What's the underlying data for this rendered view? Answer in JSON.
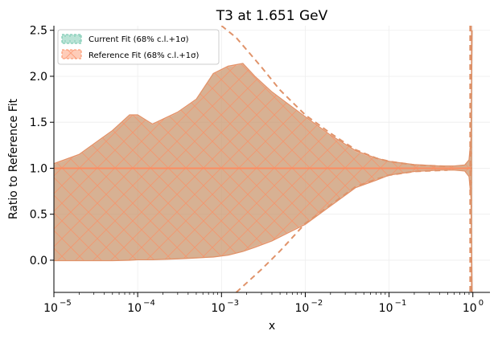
{
  "chart_data": {
    "type": "area",
    "title": "T3 at 1.651 GeV",
    "xlabel": "x",
    "ylabel": "Ratio to Reference Fit",
    "x_scale": "log",
    "xlim": [
      1e-05,
      1.6
    ],
    "ylim": [
      -0.35,
      2.55
    ],
    "x_ticks": [
      {
        "value": 1e-05,
        "label": "10",
        "exp": "−5"
      },
      {
        "value": 0.0001,
        "label": "10",
        "exp": "−4"
      },
      {
        "value": 0.001,
        "label": "10",
        "exp": "−3"
      },
      {
        "value": 0.01,
        "label": "10",
        "exp": "−2"
      },
      {
        "value": 0.1,
        "label": "10",
        "exp": "−1"
      },
      {
        "value": 1,
        "label": "10",
        "exp": "0"
      }
    ],
    "y_ticks": [
      {
        "value": 0.0,
        "label": "0.0"
      },
      {
        "value": 0.5,
        "label": "0.5"
      },
      {
        "value": 1.0,
        "label": "1.0"
      },
      {
        "value": 1.5,
        "label": "1.5"
      },
      {
        "value": 2.0,
        "label": "2.0"
      },
      {
        "value": 2.5,
        "label": "2.5"
      }
    ],
    "grid": true,
    "legend_position": "top-left",
    "series": [
      {
        "name": "Current Fit (68% c.l.+1σ)",
        "color": "#66c2a5",
        "hatch": "dots",
        "x": [
          1e-05,
          2e-05,
          5e-05,
          8e-05,
          0.0001,
          0.00015,
          0.0003,
          0.0005,
          0.0008,
          0.0012,
          0.0018,
          0.0025,
          0.004,
          0.006,
          0.01,
          0.02,
          0.04,
          0.07,
          0.1,
          0.2,
          0.4,
          0.6,
          0.8,
          0.9,
          0.95,
          0.98
        ],
        "central": [
          1.0,
          1.0,
          1.0,
          1.0,
          1.0,
          1.0,
          1.0,
          1.0,
          1.0,
          1.0,
          1.0,
          1.0,
          1.0,
          1.0,
          1.0,
          1.0,
          1.0,
          1.0,
          1.0,
          1.0,
          1.0,
          1.0,
          1.0,
          1.0,
          1.0,
          1.0
        ],
        "upper": [
          1.04,
          1.14,
          1.4,
          1.57,
          1.57,
          1.47,
          1.6,
          1.74,
          2.02,
          2.1,
          2.13,
          1.99,
          1.82,
          1.7,
          1.55,
          1.35,
          1.18,
          1.1,
          1.07,
          1.035,
          1.02,
          1.02,
          1.03,
          1.08,
          1.3,
          2.5
        ],
        "lower": [
          0.0,
          0.0,
          0.0,
          0.005,
          0.01,
          0.01,
          0.02,
          0.03,
          0.04,
          0.06,
          0.1,
          0.15,
          0.22,
          0.3,
          0.4,
          0.6,
          0.8,
          0.88,
          0.93,
          0.97,
          0.985,
          0.985,
          0.975,
          0.92,
          0.7,
          -0.35
        ]
      },
      {
        "name": "Reference Fit (68% c.l.+1σ)",
        "color": "#fc8d62",
        "hatch": "crosshatch",
        "x": [
          1e-05,
          2e-05,
          5e-05,
          8e-05,
          0.0001,
          0.00015,
          0.0003,
          0.0005,
          0.0008,
          0.0012,
          0.0018,
          0.0025,
          0.004,
          0.006,
          0.01,
          0.02,
          0.04,
          0.07,
          0.1,
          0.2,
          0.4,
          0.6,
          0.8,
          0.9,
          0.95,
          0.98
        ],
        "central": [
          1.0,
          1.0,
          1.0,
          1.0,
          1.0,
          1.0,
          1.0,
          1.0,
          1.0,
          1.0,
          1.0,
          1.0,
          1.0,
          1.0,
          1.0,
          1.0,
          1.0,
          1.0,
          1.0,
          1.0,
          1.0,
          1.0,
          1.0,
          1.0,
          1.0,
          1.0
        ],
        "upper": [
          1.05,
          1.15,
          1.41,
          1.58,
          1.58,
          1.48,
          1.61,
          1.75,
          2.03,
          2.11,
          2.14,
          2.0,
          1.83,
          1.71,
          1.56,
          1.36,
          1.19,
          1.11,
          1.075,
          1.04,
          1.025,
          1.025,
          1.035,
          1.09,
          1.32,
          2.5
        ],
        "lower": [
          -0.005,
          -0.005,
          -0.005,
          0.0,
          0.005,
          0.005,
          0.015,
          0.025,
          0.035,
          0.055,
          0.095,
          0.14,
          0.21,
          0.29,
          0.39,
          0.59,
          0.79,
          0.87,
          0.925,
          0.965,
          0.98,
          0.98,
          0.97,
          0.91,
          0.68,
          -0.35
        ]
      }
    ],
    "envelope_lines": [
      {
        "name": "upper envelope",
        "x": [
          0.001,
          0.0015,
          0.003,
          0.005,
          0.01,
          0.02,
          0.04,
          0.07,
          0.1,
          0.2,
          0.5
        ],
        "y": [
          2.55,
          2.42,
          2.1,
          1.85,
          1.58,
          1.38,
          1.2,
          1.11,
          1.075,
          1.035,
          1.02
        ]
      },
      {
        "name": "lower envelope",
        "x": [
          0.0015,
          0.003,
          0.005,
          0.01,
          0.02,
          0.04,
          0.07,
          0.1,
          0.2,
          0.5
        ],
        "y": [
          -0.35,
          -0.1,
          0.1,
          0.4,
          0.6,
          0.8,
          0.88,
          0.925,
          0.965,
          0.98
        ]
      }
    ]
  }
}
